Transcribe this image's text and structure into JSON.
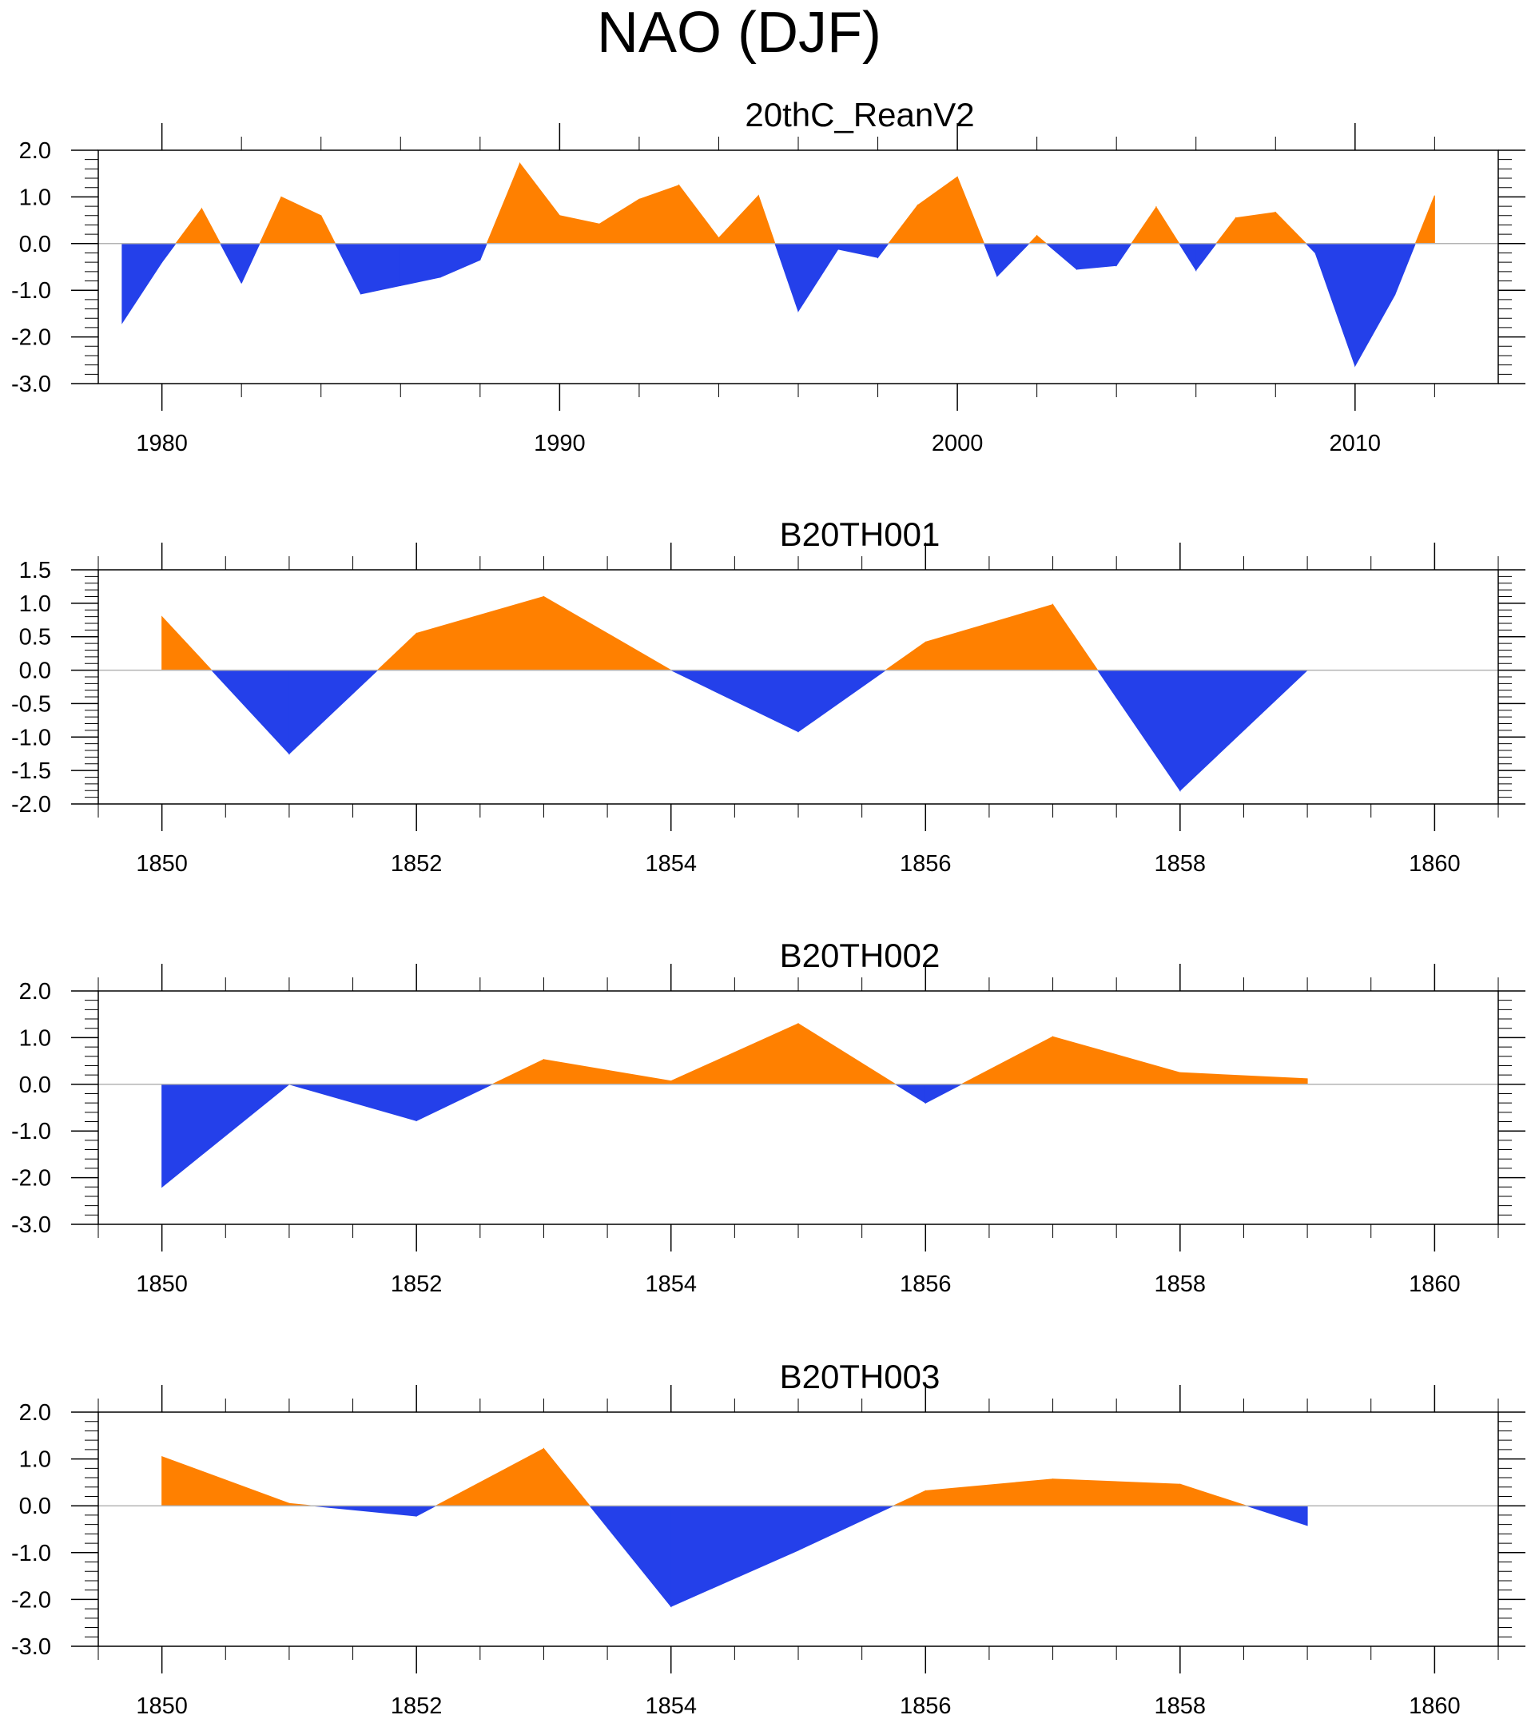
{
  "page_title": "NAO (DJF)",
  "colors": {
    "positive": "#ff8000",
    "negative": "#2440ea",
    "zero_line": "#b4b4b4",
    "frame": "#000000"
  },
  "chart_data": [
    {
      "type": "area",
      "title": "20thC_ReanV2",
      "x": [
        1979,
        1980,
        1981,
        1982,
        1983,
        1984,
        1985,
        1986,
        1987,
        1988,
        1989,
        1990,
        1991,
        1992,
        1993,
        1994,
        1995,
        1996,
        1997,
        1998,
        1999,
        2000,
        2001,
        2002,
        2003,
        2004,
        2005,
        2006,
        2007,
        2008,
        2009,
        2010,
        2011,
        2012
      ],
      "values": [
        -1.7,
        -0.4,
        0.75,
        -0.85,
        1.0,
        0.6,
        -1.08,
        -0.9,
        -0.72,
        -0.35,
        1.72,
        0.6,
        0.42,
        0.95,
        1.25,
        0.12,
        1.03,
        -1.45,
        -0.12,
        -0.3,
        0.82,
        1.43,
        -0.7,
        0.17,
        -0.55,
        -0.47,
        0.78,
        -0.57,
        0.55,
        0.67,
        -0.2,
        -2.62,
        -1.1,
        1.03
      ],
      "ylim": [
        -3.0,
        2.0
      ],
      "yticks": [
        2.0,
        1.0,
        0.0,
        -1.0,
        -2.0,
        -3.0
      ],
      "ytick_labels": [
        "2.0",
        "1.0",
        "0.0",
        "-1.0",
        "-2.0",
        "-3.0"
      ],
      "ymajor_step": 1.0,
      "yminor_step": 0.2,
      "xlim": [
        1978.4,
        2013.6
      ],
      "xticks": [
        1980,
        1990,
        2000,
        2010
      ],
      "xtick_labels": [
        "1980",
        "1990",
        "2000",
        "2010"
      ],
      "xmajor_step": 10,
      "xminor_step": 2,
      "xminor_start": 1980,
      "grid": false
    },
    {
      "type": "area",
      "title": "B20TH001",
      "x": [
        1850,
        1851,
        1852,
        1853,
        1854,
        1855,
        1856,
        1857,
        1858,
        1859
      ],
      "values": [
        0.8,
        -1.25,
        0.55,
        1.1,
        0.0,
        -0.92,
        0.42,
        0.98,
        -1.8,
        0.0
      ],
      "ylim": [
        -2.0,
        1.5
      ],
      "yticks": [
        1.5,
        1.0,
        0.5,
        0.0,
        -0.5,
        -1.0,
        -1.5,
        -2.0
      ],
      "ytick_labels": [
        "1.5",
        "1.0",
        "0.5",
        "0.0",
        "-0.5",
        "-1.0",
        "-1.5",
        "-2.0"
      ],
      "ymajor_step": 0.5,
      "yminor_step": 0.1,
      "xlim": [
        1849.5,
        1860.5
      ],
      "xticks": [
        1850,
        1852,
        1854,
        1856,
        1858,
        1860
      ],
      "xtick_labels": [
        "1850",
        "1852",
        "1854",
        "1856",
        "1858",
        "1860"
      ],
      "xmajor_step": 2,
      "xminor_step": 0.5,
      "xminor_start": 1850,
      "grid": false
    },
    {
      "type": "area",
      "title": "B20TH002",
      "x": [
        1850,
        1851,
        1852,
        1853,
        1854,
        1855,
        1856,
        1857,
        1858,
        1859
      ],
      "values": [
        -2.2,
        0.0,
        -0.78,
        0.53,
        0.07,
        1.3,
        -0.4,
        1.02,
        0.25,
        0.12
      ],
      "ylim": [
        -3.0,
        2.0
      ],
      "yticks": [
        2.0,
        1.0,
        0.0,
        -1.0,
        -2.0,
        -3.0
      ],
      "ytick_labels": [
        "2.0",
        "1.0",
        "0.0",
        "-1.0",
        "-2.0",
        "-3.0"
      ],
      "ymajor_step": 1.0,
      "yminor_step": 0.2,
      "xlim": [
        1849.5,
        1860.5
      ],
      "xticks": [
        1850,
        1852,
        1854,
        1856,
        1858,
        1860
      ],
      "xtick_labels": [
        "1850",
        "1852",
        "1854",
        "1856",
        "1858",
        "1860"
      ],
      "xmajor_step": 2,
      "xminor_step": 0.5,
      "xminor_start": 1850,
      "grid": false
    },
    {
      "type": "area",
      "title": "B20TH003",
      "x": [
        1850,
        1851,
        1852,
        1853,
        1854,
        1855,
        1856,
        1857,
        1858,
        1859
      ],
      "values": [
        1.05,
        0.05,
        -0.22,
        1.22,
        -2.15,
        -0.95,
        0.32,
        0.57,
        0.46,
        -0.42
      ],
      "ylim": [
        -3.0,
        2.0
      ],
      "yticks": [
        2.0,
        1.0,
        0.0,
        -1.0,
        -2.0,
        -3.0
      ],
      "ytick_labels": [
        "2.0",
        "1.0",
        "0.0",
        "-1.0",
        "-2.0",
        "-3.0"
      ],
      "ymajor_step": 1.0,
      "yminor_step": 0.2,
      "xlim": [
        1849.5,
        1860.5
      ],
      "xticks": [
        1850,
        1852,
        1854,
        1856,
        1858,
        1860
      ],
      "xtick_labels": [
        "1850",
        "1852",
        "1854",
        "1856",
        "1858",
        "1860"
      ],
      "xmajor_step": 2,
      "xminor_step": 0.5,
      "xminor_start": 1850,
      "grid": false
    }
  ]
}
